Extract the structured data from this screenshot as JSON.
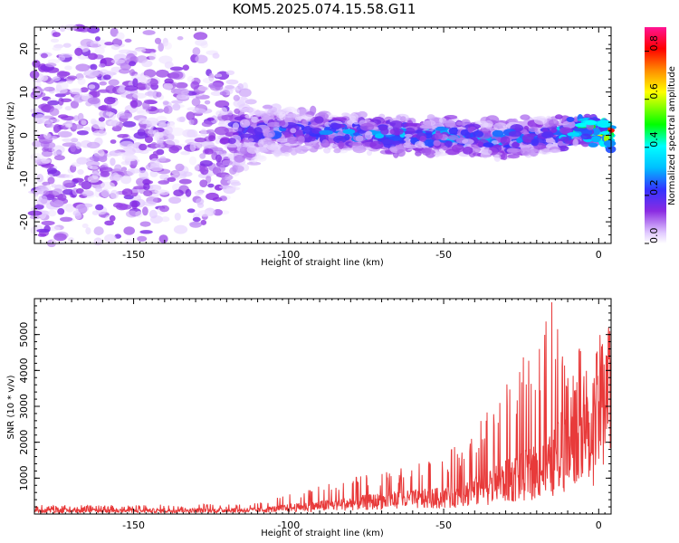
{
  "title": "KOM5.2025.074.15.58.G11",
  "colors": {
    "signal": "#e83a3a",
    "axis": "#000000",
    "background": "#ffffff"
  },
  "chart_data": [
    {
      "type": "heatmap",
      "xlabel": "Height of straight line (km)",
      "ylabel": "Frequency (Hz)",
      "xlim": [
        -182,
        4
      ],
      "ylim": [
        -25,
        25
      ],
      "x_ticks": [
        -150,
        -100,
        -50,
        0
      ],
      "y_ticks": [
        -20,
        -10,
        0,
        10,
        20
      ],
      "colorbar": {
        "label": "Normalized spectral amplitude",
        "range": [
          0,
          0.9
        ],
        "ticks": [
          "0.0",
          "0.2",
          "0.4",
          "0.6",
          "0.8"
        ],
        "colormap": [
          "#ffffff",
          "#e0c8ff",
          "#8a2be2",
          "#3333ff",
          "#00bfff",
          "#00ffff",
          "#00ff00",
          "#ffff00",
          "#ff8c00",
          "#ff0000",
          "#ff1493"
        ]
      },
      "ridge": [
        {
          "x": -180,
          "center": 0,
          "spread": 25,
          "amplitude": 0.15
        },
        {
          "x": -125,
          "center": 0,
          "spread": 20,
          "amplitude": 0.2
        },
        {
          "x": -110,
          "center": 1,
          "spread": 6,
          "amplitude": 0.3
        },
        {
          "x": -90,
          "center": 1,
          "spread": 4,
          "amplitude": 0.35
        },
        {
          "x": -70,
          "center": 0,
          "spread": 4,
          "amplitude": 0.38
        },
        {
          "x": -50,
          "center": 0,
          "spread": 4,
          "amplitude": 0.4
        },
        {
          "x": -30,
          "center": -1,
          "spread": 4,
          "amplitude": 0.38
        },
        {
          "x": -15,
          "center": 0,
          "spread": 4,
          "amplitude": 0.35
        },
        {
          "x": -8,
          "center": 1,
          "spread": 3,
          "amplitude": 0.55
        },
        {
          "x": 0,
          "center": 1,
          "spread": 3,
          "amplitude": 0.7
        },
        {
          "x": 3,
          "center": 0,
          "spread": 3,
          "amplitude": 0.9
        }
      ]
    },
    {
      "type": "line",
      "xlabel": "Height of straight line (km)",
      "ylabel": "SNR (10 * v/v)",
      "xlim": [
        -182,
        4
      ],
      "ylim": [
        0,
        6000
      ],
      "x_ticks": [
        -150,
        -100,
        -50,
        0
      ],
      "y_ticks": [
        1000,
        2000,
        3000,
        4000,
        5000
      ],
      "envelope": [
        {
          "x": -182,
          "base": 100,
          "spike": 250
        },
        {
          "x": -150,
          "base": 100,
          "spike": 250
        },
        {
          "x": -110,
          "base": 120,
          "spike": 300
        },
        {
          "x": -90,
          "base": 250,
          "spike": 800
        },
        {
          "x": -70,
          "base": 400,
          "spike": 1200
        },
        {
          "x": -50,
          "base": 500,
          "spike": 1600
        },
        {
          "x": -40,
          "base": 700,
          "spike": 2400
        },
        {
          "x": -30,
          "base": 1000,
          "spike": 3800
        },
        {
          "x": -20,
          "base": 1300,
          "spike": 4800
        },
        {
          "x": -15,
          "base": 1500,
          "spike": 6000
        },
        {
          "x": -8,
          "base": 2500,
          "spike": 4200
        },
        {
          "x": -5,
          "base": 3500,
          "spike": 5000
        },
        {
          "x": -3,
          "base": 2100,
          "spike": 2500
        },
        {
          "x": 0,
          "base": 3300,
          "spike": 4200
        },
        {
          "x": 4,
          "base": 3800,
          "spike": 4900
        }
      ]
    }
  ]
}
